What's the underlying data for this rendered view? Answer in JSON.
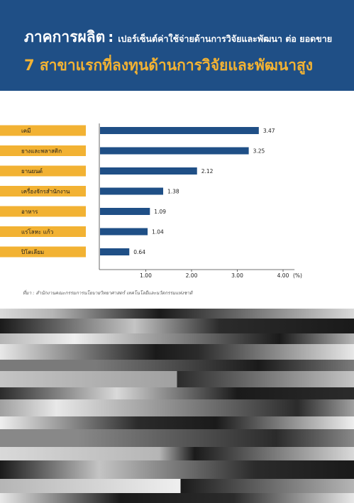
{
  "header": {
    "title_prefix": "ภาคการผลิต",
    "title_colon": ":",
    "title_desc": "เปอร์เซ็นต์ค่าใช้จ่ายด้านการวิจัยและพัฒนา ต่อ ยอดขาย",
    "subtitle": "7 สาขาแรกที่ลงทุนด้านการวิจัยและพัฒนาสูง"
  },
  "chart_data": {
    "type": "bar",
    "orientation": "horizontal",
    "categories": [
      "เคมี",
      "ยางและพลาสติก",
      "ยานยนต์",
      "เครื่องจักรสำนักงาน",
      "อาหาร",
      "แร่โลหะ แก้ว",
      "ปิโตเลียม"
    ],
    "values": [
      3.47,
      3.25,
      2.12,
      1.38,
      1.09,
      1.04,
      0.64
    ],
    "value_labels": [
      "3.47",
      "3.25",
      "2.12",
      "1.38",
      "1.09",
      "1.04",
      "0.64"
    ],
    "x_ticks": [
      "1.00",
      "2.00",
      "3.00",
      "4.00"
    ],
    "x_unit": "(%)",
    "xlim": [
      0,
      4
    ],
    "grid": false,
    "colors": {
      "bar": "#1f4f86",
      "label_box": "#f2b233"
    }
  },
  "source": "ที่มา : สำนักงานคณะกรรมการนโยบายวิทยาศาสตร์ เทคโนโลยีและนวัตกรรมแห่งชาติ",
  "colors": {
    "header_bg": "#1f4f86",
    "subtitle": "#f2b233"
  }
}
